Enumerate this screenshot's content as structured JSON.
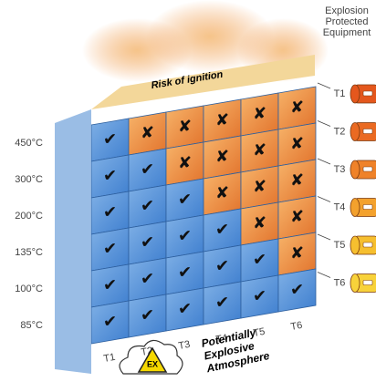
{
  "side_label": "Explosion Protected Equipment",
  "risk_label": "Risk of ignition",
  "atmosphere_label": "Potentially Explosive Atmosphere",
  "icon_label": "EX",
  "temperatures": [
    "450°C",
    "300°C",
    "200°C",
    "135°C",
    "100°C",
    "85°C"
  ],
  "columns": [
    "T1",
    "T2",
    "T3",
    "T4",
    "T5",
    "T6"
  ],
  "equipment": [
    "T1",
    "T2",
    "T3",
    "T4",
    "T5",
    "T6"
  ],
  "grid": [
    [
      "✔",
      "✘",
      "✘",
      "✘",
      "✘",
      "✘"
    ],
    [
      "✔",
      "✔",
      "✘",
      "✘",
      "✘",
      "✘"
    ],
    [
      "✔",
      "✔",
      "✔",
      "✘",
      "✘",
      "✘"
    ],
    [
      "✔",
      "✔",
      "✔",
      "✔",
      "✘",
      "✘"
    ],
    [
      "✔",
      "✔",
      "✔",
      "✔",
      "✔",
      "✘"
    ],
    [
      "✔",
      "✔",
      "✔",
      "✔",
      "✔",
      "✔"
    ]
  ]
}
